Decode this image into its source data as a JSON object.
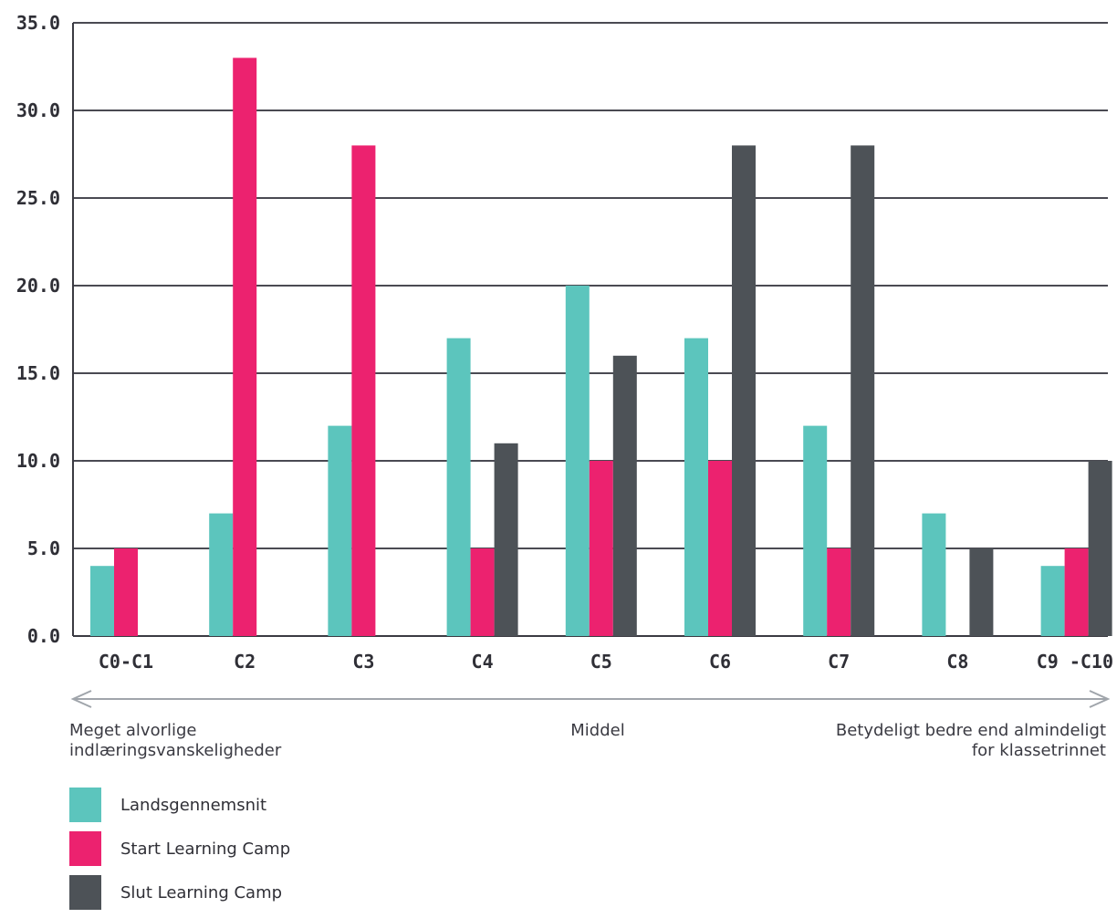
{
  "chart_data": {
    "type": "bar",
    "categories": [
      "C0-C1",
      "C2",
      "C3",
      "C4",
      "C5",
      "C6",
      "C7",
      "C8",
      "C9 -C10"
    ],
    "series": [
      {
        "name": "Landsgennemsnit",
        "color": "#5cc5bd",
        "values": [
          4,
          7,
          12,
          17,
          20,
          17,
          12,
          7,
          4
        ]
      },
      {
        "name": "Start Learning Camp",
        "color": "#ec226f",
        "values": [
          5,
          33,
          28,
          5,
          10,
          10,
          5,
          0,
          5
        ]
      },
      {
        "name": "Slut Learning Camp",
        "color": "#4d5257",
        "values": [
          0,
          0,
          0,
          11,
          16,
          28,
          28,
          5,
          10
        ]
      }
    ],
    "ylim": [
      0,
      35
    ],
    "yticks": [
      "0.0",
      "5.0",
      "10.0",
      "15.0",
      "20.0",
      "25.0",
      "30.0",
      "35.0"
    ],
    "grid": true,
    "legend_position": "bottom-left"
  },
  "scale_labels": {
    "left": "Meget alvorlige\nindlæringsvanskeligheder",
    "middle": "Middel",
    "right": "Betydeligt bedre end almindeligt\nfor klassetrinnet"
  }
}
